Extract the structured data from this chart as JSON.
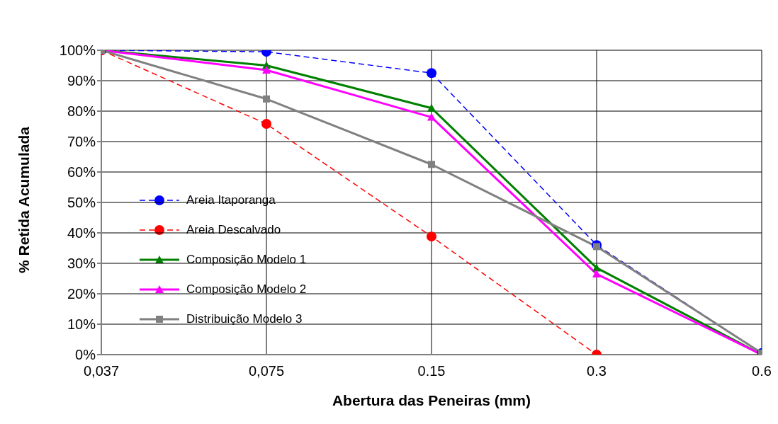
{
  "chart_data": {
    "type": "line",
    "xlabel": "Abertura das Peneiras (mm)",
    "ylabel": "% Retida Acumulada",
    "categories": [
      "0,037",
      "0,075",
      "0.15",
      "0.3",
      "0.6"
    ],
    "series": [
      {
        "name": "Areia Itaporanga",
        "color": "#0000ff",
        "line_style": "dashed",
        "marker": "circle",
        "values": [
          100,
          99.5,
          92.5,
          36,
          0.5
        ]
      },
      {
        "name": "Areia Descalvado",
        "color": "#ff0000",
        "line_style": "dashed",
        "marker": "circle",
        "values": [
          100,
          75.8,
          38.8,
          0,
          0
        ]
      },
      {
        "name": "Composição Modelo 1",
        "color": "#008000",
        "line_style": "solid",
        "marker": "triangle",
        "values": [
          100,
          95,
          81,
          28.5,
          0
        ]
      },
      {
        "name": "Composição Modelo 2",
        "color": "#ff00ff",
        "line_style": "solid",
        "marker": "triangle",
        "values": [
          100,
          93.5,
          78,
          26.5,
          0
        ]
      },
      {
        "name": "Distribuição Modelo 3",
        "color": "#808080",
        "line_style": "solid",
        "marker": "square",
        "values": [
          100,
          84,
          62.5,
          35.5,
          0.5
        ]
      }
    ],
    "ylim": [
      0,
      100
    ],
    "yticks": [
      {
        "value": 0,
        "label": "0%"
      },
      {
        "value": 10,
        "label": "10%"
      },
      {
        "value": 20,
        "label": "20%"
      },
      {
        "value": 30,
        "label": "30%"
      },
      {
        "value": 40,
        "label": "40%"
      },
      {
        "value": 50,
        "label": "50%"
      },
      {
        "value": 60,
        "label": "60%"
      },
      {
        "value": 70,
        "label": "70%"
      },
      {
        "value": 80,
        "label": "80%"
      },
      {
        "value": 90,
        "label": "90%"
      },
      {
        "value": 100,
        "label": "100%"
      }
    ],
    "grid": true,
    "legend": "left"
  }
}
